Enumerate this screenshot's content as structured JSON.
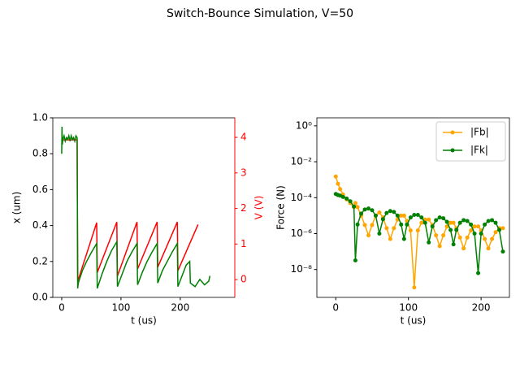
{
  "title": "Switch-Bounce Simulation, V=50",
  "chart_data": [
    {
      "type": "line",
      "xlabel": "t (us)",
      "ylabel": "x (um)",
      "y2label": "V (V)",
      "y2color": "#ff0000",
      "xlim": [
        -15,
        292
      ],
      "xticks": [
        0,
        100,
        200
      ],
      "ylim": [
        0,
        1
      ],
      "yticks": [
        {
          "value": 0,
          "label": "0.0"
        },
        0.2,
        0.4,
        0.6,
        {
          "value": 0.8,
          "label": "0.8"
        },
        {
          "value": 1,
          "label": "1.0"
        }
      ],
      "y2lim": [
        -0.5,
        4.55
      ],
      "y2ticks": [
        0,
        1,
        2,
        3,
        4
      ],
      "series": [
        {
          "color": "#ff0000",
          "axis": "y2",
          "x": [
            0,
            26,
            27,
            59,
            60,
            93,
            94,
            127,
            128,
            161,
            162,
            195,
            196,
            230
          ],
          "values": [
            3.93,
            3.93,
            -0.05,
            1.6,
            0.2,
            1.62,
            0.1,
            1.62,
            0.3,
            1.62,
            0.35,
            1.62,
            0.25,
            1.55
          ]
        },
        {
          "color": "#008000",
          "x": [
            0,
            0.5,
            1,
            2,
            4,
            6,
            8,
            10,
            12,
            14,
            16,
            18,
            20,
            22,
            24,
            26,
            27,
            28,
            35,
            42,
            50,
            59,
            60,
            68,
            76,
            84,
            93,
            94,
            102,
            110,
            118,
            127,
            128,
            136,
            144,
            152,
            161,
            162,
            170,
            178,
            186,
            195,
            196,
            203,
            210,
            216,
            217,
            225,
            233,
            241,
            248,
            250
          ],
          "values": [
            0.8,
            0.95,
            0.85,
            0.88,
            0.9,
            0.87,
            0.89,
            0.88,
            0.9,
            0.87,
            0.9,
            0.88,
            0.89,
            0.87,
            0.9,
            0.89,
            0.05,
            0.08,
            0.15,
            0.2,
            0.25,
            0.3,
            0.05,
            0.13,
            0.2,
            0.26,
            0.31,
            0.06,
            0.13,
            0.2,
            0.25,
            0.3,
            0.07,
            0.14,
            0.2,
            0.25,
            0.3,
            0.08,
            0.15,
            0.2,
            0.25,
            0.3,
            0.06,
            0.12,
            0.18,
            0.2,
            0.08,
            0.06,
            0.1,
            0.07,
            0.09,
            0.12
          ]
        }
      ]
    },
    {
      "type": "line",
      "xlabel": "t (us)",
      "ylabel": "Force (N)",
      "yscale": "log",
      "legend": "upper right",
      "markers": true,
      "xlim": [
        -26,
        239
      ],
      "xticks": [
        0,
        100,
        200
      ],
      "ylim": [
        2.8e-10,
        2.8
      ],
      "yticks": [
        {
          "value": 1,
          "label": "10⁰"
        },
        {
          "value": 0.01,
          "label": "10⁻²"
        },
        {
          "value": 0.0001,
          "label": "10⁻⁴"
        },
        {
          "value": 1e-06,
          "label": "10⁻⁶"
        },
        {
          "value": 1e-08,
          "label": "10⁻⁸"
        }
      ],
      "x": [
        0,
        3,
        6,
        10,
        15,
        20,
        25,
        27,
        30,
        35,
        40,
        45,
        50,
        55,
        60,
        65,
        70,
        75,
        80,
        85,
        90,
        94,
        98,
        103,
        108,
        113,
        118,
        123,
        128,
        133,
        138,
        143,
        148,
        153,
        158,
        162,
        166,
        171,
        176,
        181,
        186,
        191,
        196,
        200,
        205,
        210,
        215,
        220,
        225,
        230
      ],
      "series": [
        {
          "name": "|Fb|",
          "color": "#ffa500",
          "values": [
            0.0015,
            0.0006,
            0.0003,
            0.00015,
            8e-05,
            5e-05,
            3e-05,
            5e-05,
            3e-05,
            1e-05,
            3e-06,
            8e-07,
            3e-06,
            1e-05,
            1.5e-05,
            8e-06,
            2e-06,
            5e-07,
            2e-06,
            6e-06,
            1e-05,
            1e-05,
            5e-06,
            1.5e-06,
            1e-09,
            1.5e-06,
            4e-06,
            6e-06,
            6e-06,
            3e-06,
            8e-07,
            2e-07,
            8e-07,
            2.5e-06,
            4e-06,
            4e-06,
            2e-06,
            6e-07,
            1.5e-07,
            6e-07,
            1.5e-06,
            2.5e-06,
            2.5e-06,
            1.5e-06,
            5e-07,
            1.5e-07,
            5e-07,
            1.2e-06,
            2e-06,
            2e-06
          ]
        },
        {
          "name": "|Fk|",
          "color": "#008000",
          "values": [
            0.00016,
            0.00014,
            0.00013,
            0.00011,
            8.9e-05,
            6.3e-05,
            3.2e-05,
            3.2e-08,
            3.2e-06,
            1.3e-05,
            2.2e-05,
            2.5e-05,
            2e-05,
            1e-05,
            1e-06,
            6.3e-06,
            1.4e-05,
            1.8e-05,
            1.6e-05,
            1e-05,
            3.2e-06,
            5e-07,
            3.2e-06,
            7.9e-06,
            1.1e-05,
            1.1e-05,
            7.9e-06,
            4e-06,
            3.2e-07,
            2.5e-06,
            5.6e-06,
            7.9e-06,
            7.1e-06,
            4.5e-06,
            1.6e-06,
            2.5e-07,
            1.6e-06,
            4e-06,
            5.6e-06,
            5e-06,
            3.2e-06,
            1e-06,
            6.3e-09,
            1e-06,
            3.2e-06,
            5e-06,
            5.6e-06,
            4e-06,
            1.6e-06,
            1e-07
          ]
        }
      ]
    }
  ]
}
